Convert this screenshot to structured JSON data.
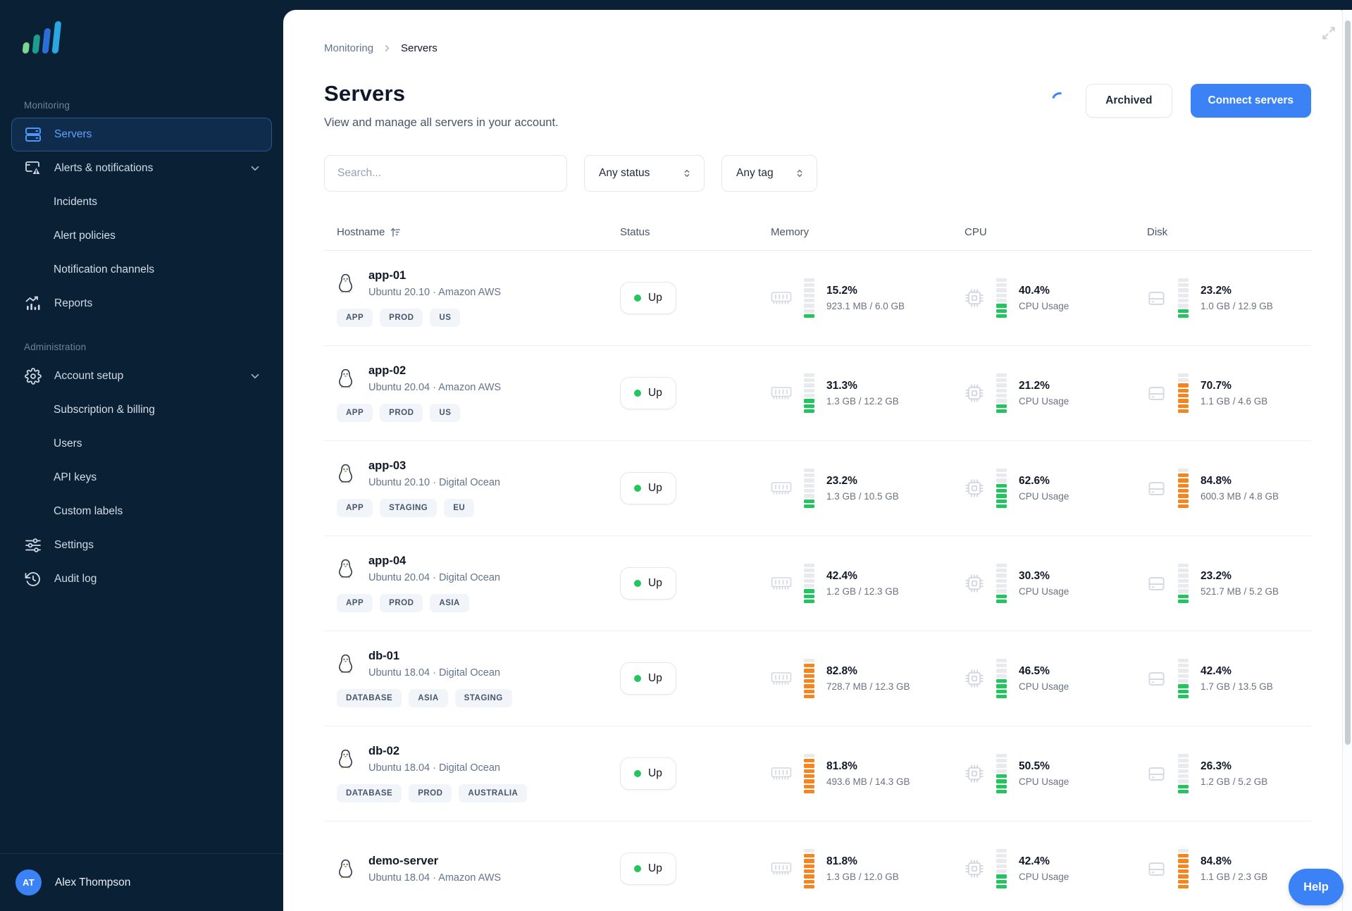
{
  "colors": {
    "accent": "#3b82f6",
    "green": "#22c55e",
    "orange": "#f5861f",
    "sidebar_bg": "#0a2035"
  },
  "sidebar": {
    "sections": [
      {
        "label": "Monitoring",
        "items": [
          {
            "label": "Servers",
            "icon": "servers-icon",
            "active": true
          },
          {
            "label": "Alerts & notifications",
            "icon": "alerts-icon",
            "chevron": true
          },
          {
            "label": "Incidents",
            "sub": true
          },
          {
            "label": "Alert policies",
            "sub": true
          },
          {
            "label": "Notification channels",
            "sub": true
          },
          {
            "label": "Reports",
            "icon": "reports-icon"
          }
        ]
      },
      {
        "label": "Administration",
        "items": [
          {
            "label": "Account setup",
            "icon": "gear-icon",
            "chevron": true
          },
          {
            "label": "Subscription & billing",
            "sub": true
          },
          {
            "label": "Users",
            "sub": true
          },
          {
            "label": "API keys",
            "sub": true
          },
          {
            "label": "Custom labels",
            "sub": true
          },
          {
            "label": "Settings",
            "icon": "sliders-icon"
          },
          {
            "label": "Audit log",
            "icon": "history-icon"
          }
        ]
      }
    ],
    "user": {
      "initials": "AT",
      "name": "Alex Thompson"
    }
  },
  "header": {
    "breadcrumb": {
      "parent": "Monitoring",
      "current": "Servers"
    },
    "title": "Servers",
    "subtitle": "View and manage all servers in your account.",
    "archived_label": "Archived",
    "connect_label": "Connect servers"
  },
  "filters": {
    "search_placeholder": "Search...",
    "status_filter": "Any status",
    "tag_filter": "Any tag"
  },
  "table": {
    "columns": [
      "Hostname",
      "Status",
      "Memory",
      "CPU",
      "Disk"
    ],
    "cpu_sublabel": "CPU Usage",
    "rows": [
      {
        "hostname": "app-01",
        "os": "Ubuntu 20.10 · Amazon AWS",
        "tags": [
          "APP",
          "PROD",
          "US"
        ],
        "status": "Up",
        "memory": {
          "pct": "15.2%",
          "detail": "923.1 MB / 6.0 GB"
        },
        "cpu": {
          "pct": "40.4%"
        },
        "disk": {
          "pct": "23.2%",
          "detail": "1.0 GB / 12.9 GB"
        }
      },
      {
        "hostname": "app-02",
        "os": "Ubuntu 20.04 · Amazon AWS",
        "tags": [
          "APP",
          "PROD",
          "US"
        ],
        "status": "Up",
        "memory": {
          "pct": "31.3%",
          "detail": "1.3 GB / 12.2 GB"
        },
        "cpu": {
          "pct": "21.2%"
        },
        "disk": {
          "pct": "70.7%",
          "detail": "1.1 GB / 4.6 GB"
        }
      },
      {
        "hostname": "app-03",
        "os": "Ubuntu 20.10 · Digital Ocean",
        "tags": [
          "APP",
          "STAGING",
          "EU"
        ],
        "status": "Up",
        "memory": {
          "pct": "23.2%",
          "detail": "1.3 GB / 10.5 GB"
        },
        "cpu": {
          "pct": "62.6%"
        },
        "disk": {
          "pct": "84.8%",
          "detail": "600.3 MB / 4.8 GB"
        }
      },
      {
        "hostname": "app-04",
        "os": "Ubuntu 20.04 · Digital Ocean",
        "tags": [
          "APP",
          "PROD",
          "ASIA"
        ],
        "status": "Up",
        "memory": {
          "pct": "42.4%",
          "detail": "1.2 GB / 12.3 GB"
        },
        "cpu": {
          "pct": "30.3%"
        },
        "disk": {
          "pct": "23.2%",
          "detail": "521.7 MB / 5.2 GB"
        }
      },
      {
        "hostname": "db-01",
        "os": "Ubuntu 18.04 · Digital Ocean",
        "tags": [
          "DATABASE",
          "ASIA",
          "STAGING"
        ],
        "status": "Up",
        "memory": {
          "pct": "82.8%",
          "detail": "728.7 MB / 12.3 GB"
        },
        "cpu": {
          "pct": "46.5%"
        },
        "disk": {
          "pct": "42.4%",
          "detail": "1.7 GB / 13.5 GB"
        }
      },
      {
        "hostname": "db-02",
        "os": "Ubuntu 18.04 · Digital Ocean",
        "tags": [
          "DATABASE",
          "PROD",
          "AUSTRALIA"
        ],
        "status": "Up",
        "memory": {
          "pct": "81.8%",
          "detail": "493.6 MB / 14.3 GB"
        },
        "cpu": {
          "pct": "50.5%"
        },
        "disk": {
          "pct": "26.3%",
          "detail": "1.2 GB / 5.2 GB"
        }
      },
      {
        "hostname": "demo-server",
        "os": "Ubuntu 18.04 · Amazon AWS",
        "tags": [],
        "status": "Up",
        "memory": {
          "pct": "81.8%",
          "detail": "1.3 GB / 12.0 GB"
        },
        "cpu": {
          "pct": "42.4%"
        },
        "disk": {
          "pct": "84.8%",
          "detail": "1.1 GB / 2.3 GB"
        }
      }
    ]
  },
  "help_label": "Help"
}
